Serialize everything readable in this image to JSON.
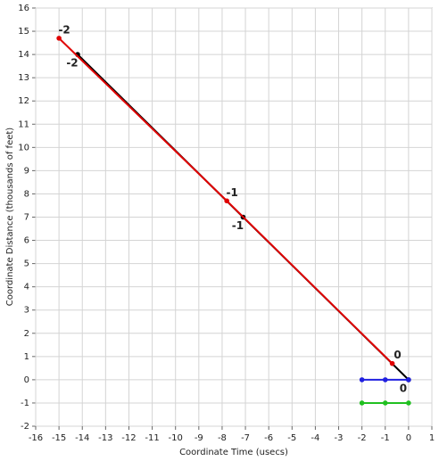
{
  "chart_data": {
    "type": "line",
    "xlabel": "Coordinate Time (usecs)",
    "ylabel": "Coordinate Distance (thousands of feet)",
    "xlim": [
      -16,
      1
    ],
    "ylim": [
      -2,
      16
    ],
    "xticks": [
      -16,
      -15,
      -14,
      -13,
      -12,
      -11,
      -10,
      -9,
      -8,
      -7,
      -6,
      -5,
      -4,
      -3,
      -2,
      -1,
      0,
      1
    ],
    "yticks": [
      -2,
      -1,
      0,
      1,
      2,
      3,
      4,
      5,
      6,
      7,
      8,
      9,
      10,
      11,
      12,
      13,
      14,
      15,
      16
    ],
    "grid": true,
    "series": [
      {
        "color": "#000000",
        "x": [
          -14.2,
          -7.1,
          0
        ],
        "values": [
          14,
          7,
          0
        ],
        "point_labels": [
          "-2",
          "-1",
          "0"
        ],
        "label_position": "below"
      },
      {
        "color": "#e00000",
        "x": [
          -15,
          -7.8,
          -0.7
        ],
        "values": [
          14.7,
          7.7,
          0.7
        ],
        "point_labels": [
          "-2",
          "-1",
          "0"
        ],
        "label_position": "above"
      },
      {
        "color": "#2020e0",
        "x": [
          -2,
          -1,
          0
        ],
        "values": [
          0,
          0,
          0
        ]
      },
      {
        "color": "#20c020",
        "x": [
          -2,
          -1,
          0
        ],
        "values": [
          -1,
          -1,
          -1
        ]
      }
    ]
  }
}
